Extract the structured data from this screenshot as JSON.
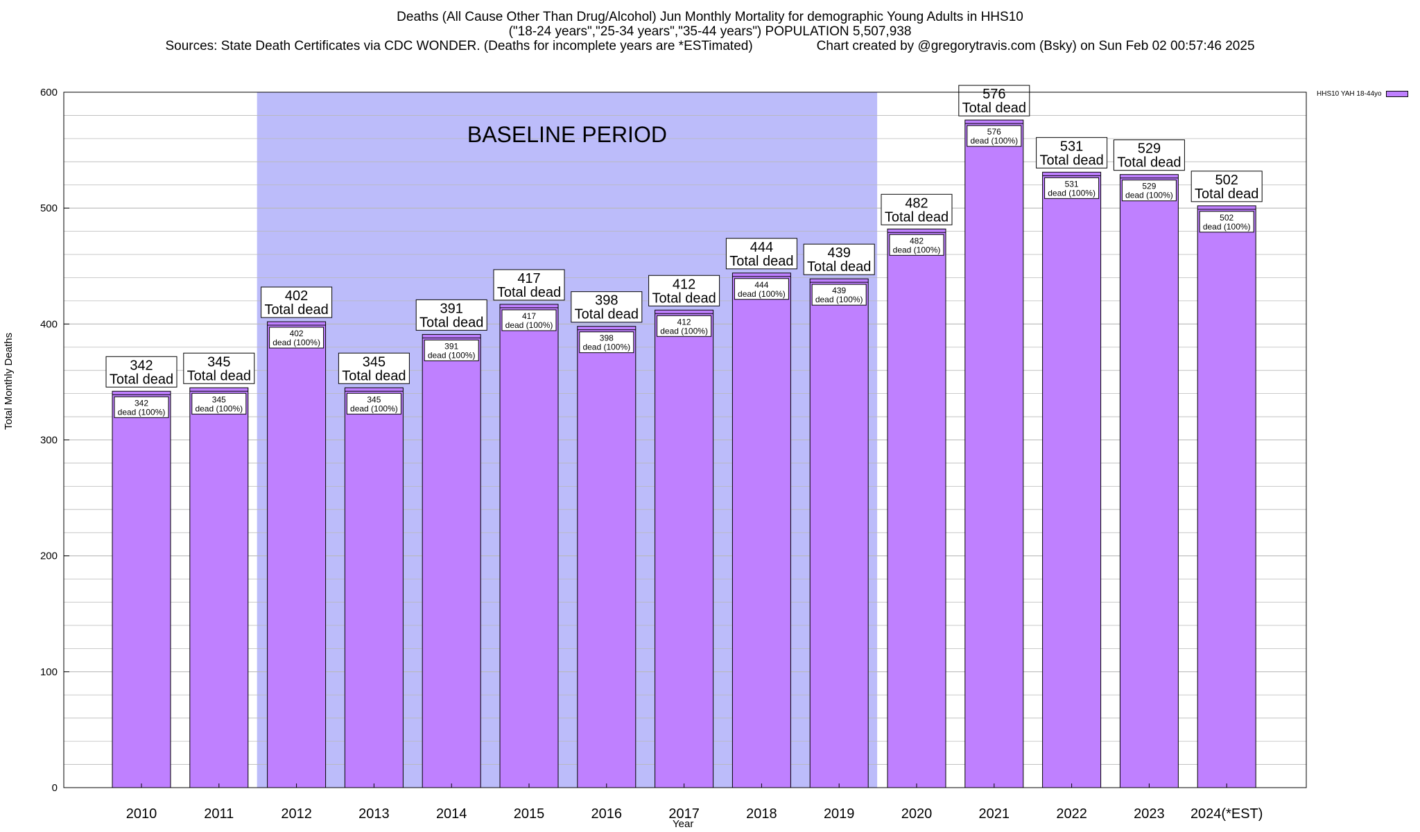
{
  "chart_data": {
    "type": "bar",
    "title": "Deaths (All Cause Other Than Drug/Alcohol) Jun Monthly Mortality for demographic Young Adults in HHS10",
    "subtitle": "(\"18-24 years\",\"25-34 years\",\"35-44 years\") POPULATION 5,507,938",
    "source_line": "Sources: State Death Certificates via CDC WONDER. (Deaths for incomplete years are *ESTimated)",
    "credit_line": "Chart created by @gregorytravis.com (Bsky) on Sun Feb 02 00:57:46 2025",
    "xlabel": "Year",
    "ylabel": "Total Monthly Deaths",
    "ylim": [
      0,
      600
    ],
    "y_ticks": [
      0,
      100,
      200,
      300,
      400,
      500,
      600
    ],
    "grid": true,
    "legend_position": "top-right",
    "categories": [
      "2010",
      "2011",
      "2012",
      "2013",
      "2014",
      "2015",
      "2016",
      "2017",
      "2018",
      "2019",
      "2020",
      "2021",
      "2022",
      "2023",
      "2024(*EST)"
    ],
    "series": [
      {
        "name": "HHS10 YAH 18-44yo",
        "values": [
          342,
          345,
          402,
          345,
          391,
          417,
          398,
          412,
          444,
          439,
          482,
          576,
          531,
          529,
          502
        ]
      }
    ],
    "total_label_suffix": "Total dead",
    "inner_label_suffix": "dead (100%)",
    "baseline_label": "BASELINE PERIOD",
    "baseline_range": [
      "2012",
      "2019"
    ]
  },
  "colors": {
    "bar_fill": "#bf80ff",
    "baseline_fill": "#bcbcfa",
    "grid": "#b8b8b8",
    "axis": "#000000"
  }
}
